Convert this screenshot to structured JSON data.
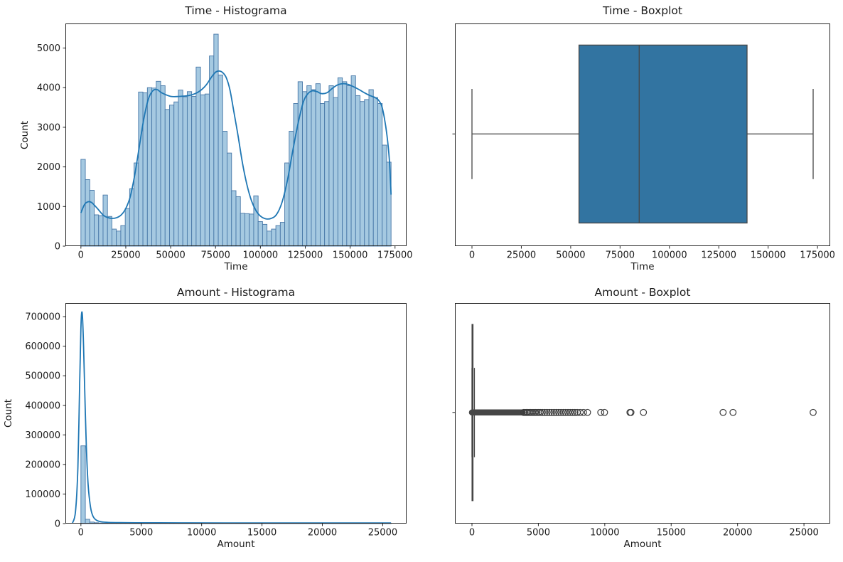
{
  "figure": {
    "background": "#ffffff"
  },
  "chart_data": [
    {
      "id": "time-histogram",
      "type": "histogram",
      "title": "Time - Histograma",
      "xlabel": "Time",
      "ylabel": "Count",
      "xlim": [
        -8640,
        181432
      ],
      "ylim": [
        0,
        5620
      ],
      "xticks": {
        "values": [
          0,
          25000,
          50000,
          75000,
          100000,
          125000,
          150000,
          175000
        ],
        "labels": [
          "0",
          "25000",
          "50000",
          "75000",
          "100000",
          "125000",
          "150000",
          "175000"
        ]
      },
      "yticks": {
        "values": [
          0,
          1000,
          2000,
          3000,
          4000,
          5000
        ],
        "labels": [
          "0",
          "1000",
          "2000",
          "3000",
          "4000",
          "5000"
        ]
      },
      "bar_fill": "#A5C9E1",
      "bar_edge": "#4878A8",
      "kde_color": "#1F77B4",
      "bins": {
        "start": 0,
        "width": 2468.46,
        "values": [
          2190,
          1680,
          1410,
          790,
          770,
          1290,
          750,
          430,
          380,
          520,
          950,
          1450,
          2100,
          3890,
          3870,
          4000,
          3990,
          4160,
          4050,
          3450,
          3560,
          3640,
          3940,
          3770,
          3900,
          3780,
          4520,
          3820,
          3840,
          4800,
          5350,
          4320,
          2900,
          2350,
          1400,
          1250,
          830,
          820,
          810,
          1270,
          620,
          550,
          380,
          430,
          520,
          600,
          2100,
          2900,
          3600,
          4150,
          3900,
          4050,
          3950,
          4100,
          3600,
          3650,
          4050,
          3750,
          4250,
          4150,
          4050,
          4300,
          3800,
          3650,
          3700,
          3950,
          3750,
          3600,
          2550,
          2120
        ]
      },
      "kde": {
        "x": [
          0,
          2000,
          4000,
          6000,
          9000,
          12500,
          15000,
          17500,
          20000,
          22500,
          25000,
          27500,
          30000,
          32500,
          35000,
          37500,
          40000,
          42500,
          45000,
          50000,
          55000,
          60000,
          62500,
          65000,
          67500,
          70000,
          72500,
          75000,
          77000,
          79000,
          81000,
          83000,
          85000,
          87500,
          90000,
          92500,
          95000,
          97500,
          100000,
          103000,
          106000,
          109000,
          112000,
          115000,
          118000,
          121000,
          124000,
          126500,
          129000,
          131500,
          134000,
          137000,
          140000,
          143000,
          146000,
          149000,
          152000,
          155000,
          158000,
          161000,
          163500,
          165500,
          167500,
          169000,
          170500,
          171800,
          172792
        ],
        "y": [
          840,
          1050,
          1120,
          1100,
          960,
          780,
          720,
          700,
          720,
          790,
          950,
          1250,
          1800,
          2500,
          3200,
          3700,
          3920,
          3950,
          3870,
          3780,
          3780,
          3800,
          3830,
          3880,
          3960,
          4080,
          4250,
          4390,
          4420,
          4380,
          4250,
          3950,
          3450,
          2800,
          2100,
          1550,
          1150,
          900,
          760,
          690,
          700,
          800,
          1100,
          1650,
          2400,
          3100,
          3650,
          3850,
          3920,
          3900,
          3850,
          3870,
          3980,
          4070,
          4100,
          4080,
          4020,
          3950,
          3870,
          3800,
          3760,
          3700,
          3550,
          3250,
          2800,
          2200,
          1300
        ]
      }
    },
    {
      "id": "time-boxplot",
      "type": "boxplot",
      "title": "Time - Boxplot",
      "xlabel": "Time",
      "ylabel": "",
      "xlim": [
        -8640,
        181432
      ],
      "xticks": {
        "values": [
          0,
          25000,
          50000,
          75000,
          100000,
          125000,
          150000,
          175000
        ],
        "labels": [
          "0",
          "25000",
          "50000",
          "75000",
          "100000",
          "125000",
          "150000",
          "175000"
        ]
      },
      "box_fill": "#3274A1",
      "line_color": "#464646",
      "flier_color": "#3C3C3C",
      "stats": {
        "whisker_low": 0,
        "q1": 54202,
        "median": 84692,
        "q3": 139320,
        "whisker_high": 172792
      },
      "outliers": []
    },
    {
      "id": "amount-histogram",
      "type": "histogram",
      "title": "Amount - Histograma",
      "xlabel": "Amount",
      "ylabel": "Count",
      "xlim": [
        -1285,
        26976
      ],
      "ylim": [
        0,
        746000
      ],
      "xticks": {
        "values": [
          0,
          5000,
          10000,
          15000,
          20000,
          25000
        ],
        "labels": [
          "0",
          "5000",
          "10000",
          "15000",
          "20000",
          "25000"
        ]
      },
      "yticks": {
        "values": [
          0,
          100000,
          200000,
          300000,
          400000,
          500000,
          600000,
          700000
        ],
        "labels": [
          "0",
          "100000",
          "200000",
          "300000",
          "400000",
          "500000",
          "600000",
          "700000"
        ]
      },
      "bar_fill": "#A5C9E1",
      "bar_edge": "#4878A8",
      "kde_color": "#1F77B4",
      "bins": {
        "start": 0,
        "width": 367.02,
        "values": [
          263000,
          14500,
          5200,
          2900,
          1800,
          1250,
          950,
          750,
          600,
          500,
          420,
          360,
          310,
          270,
          240,
          210,
          185,
          165,
          150,
          135,
          120,
          110,
          100,
          92,
          85,
          78,
          72,
          66,
          61,
          56,
          52,
          48,
          45,
          42,
          39,
          36,
          34,
          32,
          30,
          28,
          26,
          25,
          23,
          22,
          21,
          20,
          19,
          18,
          17,
          16,
          15,
          14,
          13,
          13,
          12,
          11,
          11,
          10,
          10,
          9,
          9,
          8,
          8,
          7,
          7,
          6,
          6,
          5,
          5,
          4
        ]
      },
      "kde": {
        "x": [
          -700,
          -450,
          -250,
          -100,
          0,
          60,
          130,
          220,
          330,
          450,
          600,
          800,
          1000,
          1300,
          1700,
          2300,
          3200,
          4500,
          6500,
          9000,
          12000,
          16000,
          20000,
          25691
        ],
        "y": [
          1500,
          40000,
          190000,
          480000,
          660000,
          712000,
          700000,
          600000,
          430000,
          260000,
          130000,
          55000,
          25000,
          11000,
          6000,
          4000,
          3200,
          2800,
          2500,
          2300,
          2200,
          2100,
          2000,
          1900
        ]
      }
    },
    {
      "id": "amount-boxplot",
      "type": "boxplot",
      "title": "Amount - Boxplot",
      "xlabel": "Amount",
      "ylabel": "",
      "xlim": [
        -1285,
        26976
      ],
      "xticks": {
        "values": [
          0,
          5000,
          10000,
          15000,
          20000,
          25000
        ],
        "labels": [
          "0",
          "5000",
          "10000",
          "15000",
          "20000",
          "25000"
        ]
      },
      "box_fill": "#3274A1",
      "line_color": "#464646",
      "flier_color": "#3C3C3C",
      "stats": {
        "whisker_low": 0,
        "q1": 5.6,
        "median": 22.0,
        "q3": 77.16,
        "whisker_high": 184.5
      },
      "outlier_band": [
        0,
        3800
      ],
      "outliers": [
        3900,
        4000,
        4100,
        4200,
        4300,
        4420,
        4540,
        4660,
        4780,
        4900,
        5020,
        5140,
        5300,
        5480,
        5650,
        5830,
        6000,
        6180,
        6350,
        6530,
        6700,
        6880,
        7050,
        7230,
        7400,
        7580,
        7750,
        7930,
        8150,
        8400,
        8700,
        9700,
        9980,
        11898,
        11970,
        12911,
        18910,
        19657,
        25691
      ]
    }
  ]
}
